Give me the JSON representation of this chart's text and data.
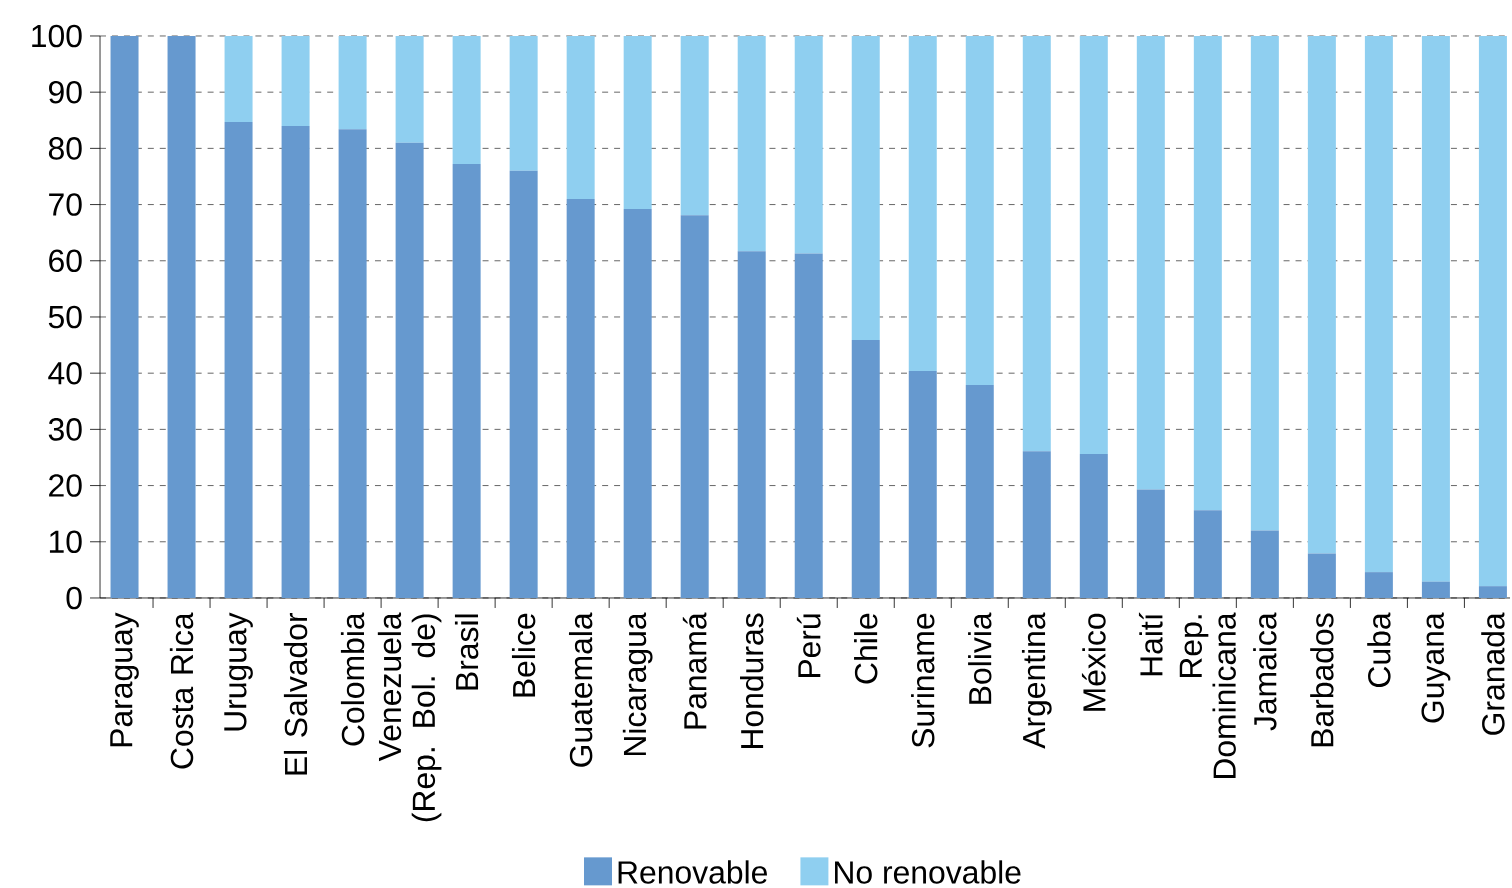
{
  "chart_data": {
    "type": "bar",
    "stacked": true,
    "categories": [
      "Paraguay",
      "Costa Rica",
      "Uruguay",
      "El Salvador",
      "Colombia",
      "Venezuela (Rep. Bol. de)",
      "Brasil",
      "Belice",
      "Guatemala",
      "Nicaragua",
      "Panamá",
      "Honduras",
      "Perú",
      "Chile",
      "Suriname",
      "Bolivia",
      "Argentina",
      "México",
      "Haití",
      "Rep. Dominicana",
      "Jamaica",
      "Barbados",
      "Cuba",
      "Guyana",
      "Granada"
    ],
    "series": [
      {
        "name": "Renovable",
        "color": "#6699cf",
        "values": [
          100,
          100,
          84.7,
          84.0,
          83.4,
          81.0,
          77.2,
          76.0,
          71.0,
          69.2,
          68.1,
          61.7,
          61.3,
          45.9,
          40.4,
          37.9,
          26.1,
          25.6,
          19.3,
          15.6,
          12.0,
          7.9,
          4.6,
          2.9,
          2.1
        ]
      },
      {
        "name": "No renovable",
        "color": "#8fcff0",
        "values": [
          0,
          0,
          15.3,
          16.0,
          16.6,
          19.0,
          22.8,
          24.0,
          29.0,
          30.8,
          31.9,
          38.3,
          38.7,
          54.1,
          59.6,
          62.1,
          73.9,
          74.4,
          80.7,
          84.4,
          88.0,
          92.1,
          95.4,
          97.1,
          97.9
        ]
      }
    ],
    "ylim": [
      0,
      100
    ],
    "yticks": [
      0,
      10,
      20,
      30,
      40,
      50,
      60,
      70,
      80,
      90,
      100
    ],
    "grid": "y",
    "legend": "bottom"
  }
}
